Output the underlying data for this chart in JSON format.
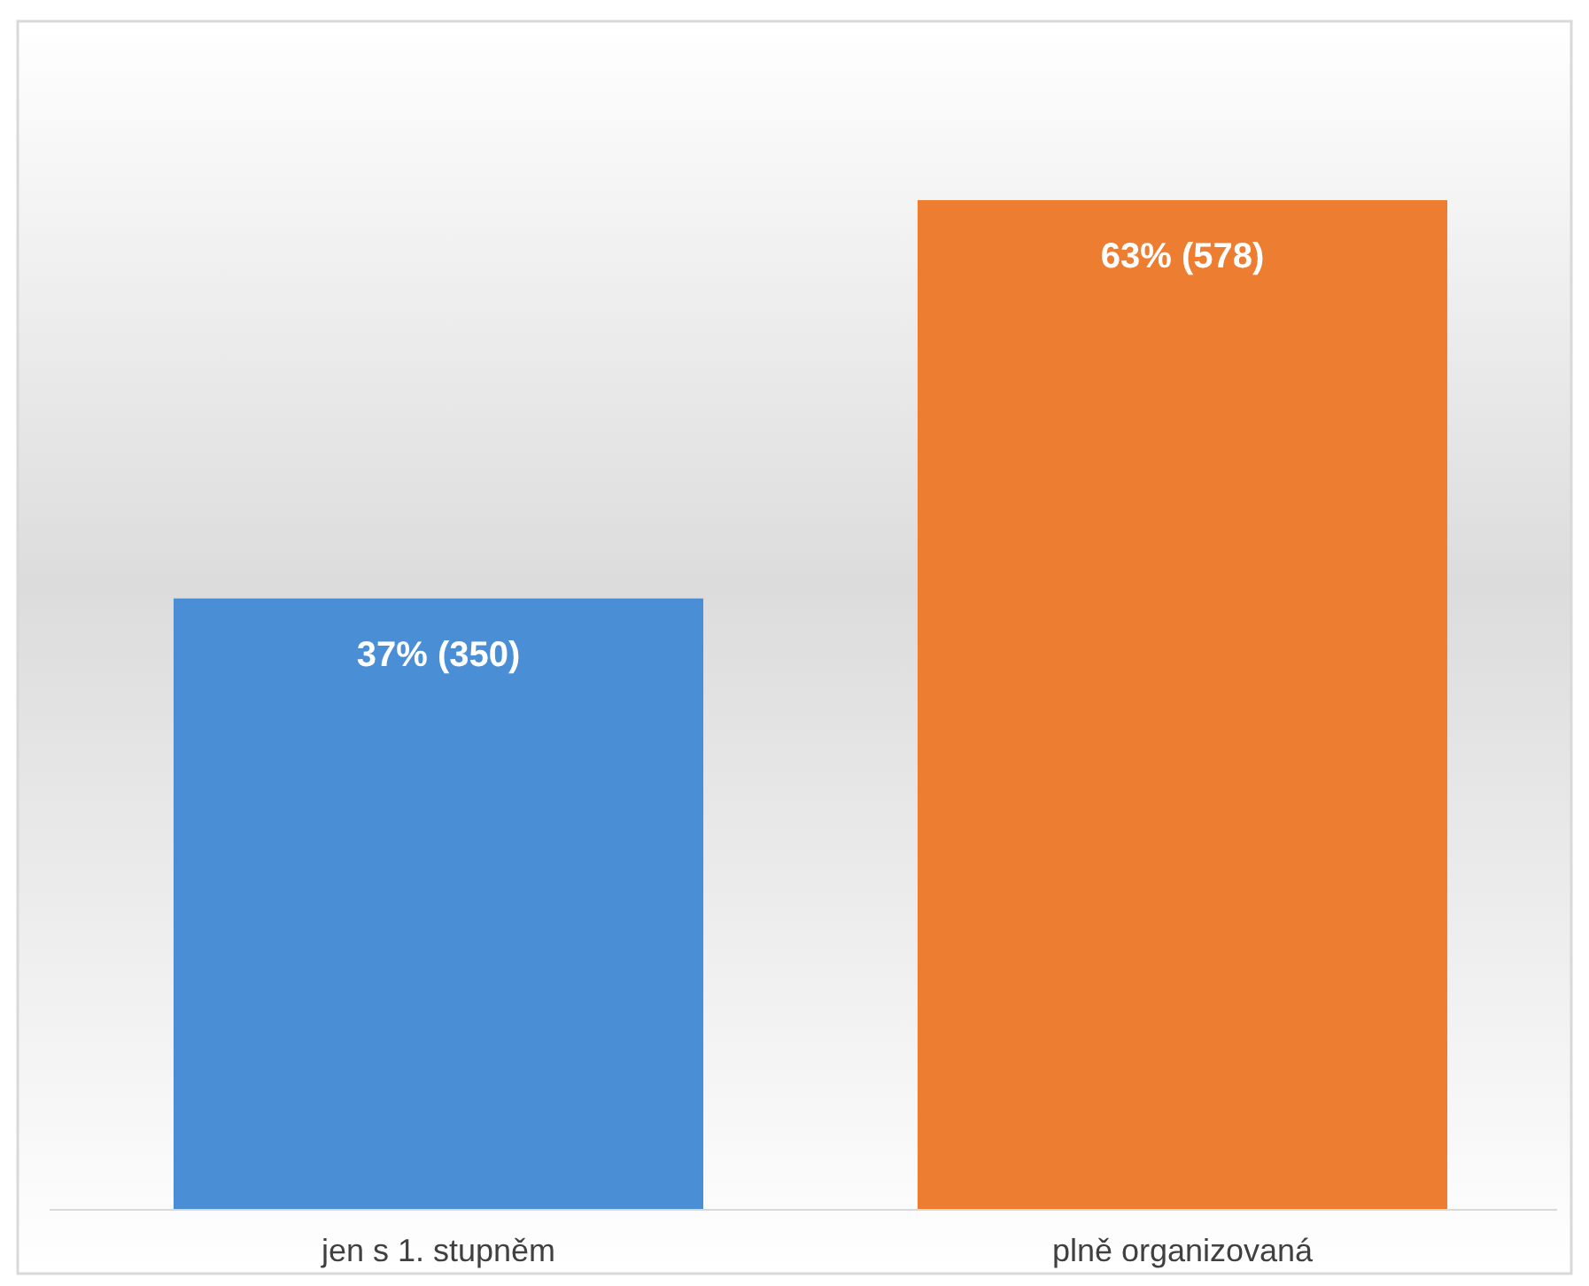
{
  "chart_data": {
    "type": "bar",
    "categories": [
      "jen s 1. stupněm",
      "plně organizovaná"
    ],
    "values": [
      350,
      578
    ],
    "colors": [
      "#4a8fd5",
      "#ed7d31"
    ],
    "value_labels": [
      "37% (350)",
      "63% (578)"
    ],
    "grid": false
  }
}
